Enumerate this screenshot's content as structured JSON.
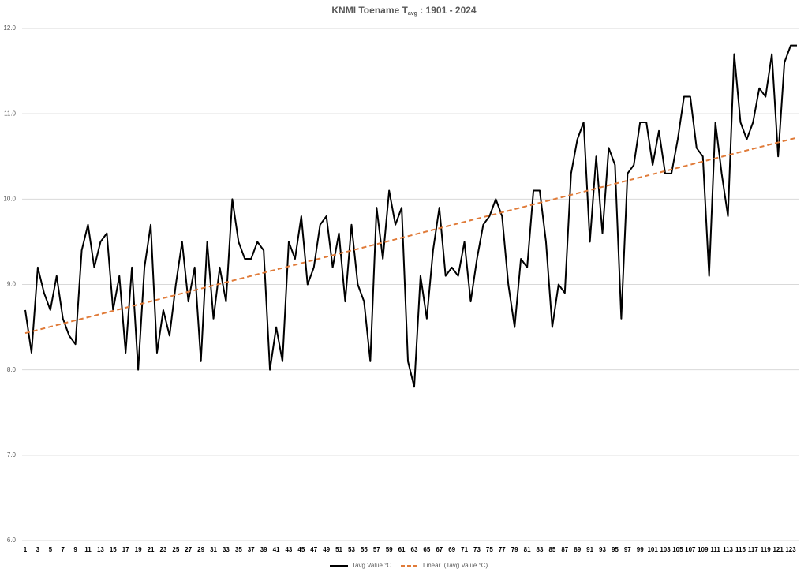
{
  "chart_data": {
    "type": "line",
    "title": "KNMI Toename T",
    "title_subscript": "avg",
    "title_suffix": " : 1901 - 2024",
    "categories": [
      1,
      null,
      3,
      null,
      5,
      null,
      7,
      null,
      9,
      null,
      11,
      null,
      13,
      null,
      15,
      null,
      17,
      null,
      19,
      null,
      21,
      null,
      23,
      null,
      25,
      null,
      27,
      null,
      29,
      null,
      31,
      null,
      33,
      null,
      35,
      null,
      37,
      null,
      39,
      null,
      41,
      null,
      43,
      null,
      45,
      null,
      47,
      null,
      49,
      null,
      51,
      null,
      53,
      null,
      55,
      null,
      57,
      null,
      59,
      null,
      61,
      null,
      63,
      null,
      65,
      null,
      67,
      null,
      69,
      null,
      71,
      null,
      73,
      null,
      75,
      null,
      77,
      null,
      79,
      null,
      81,
      null,
      83,
      null,
      85,
      null,
      87,
      null,
      89,
      null,
      91,
      null,
      93,
      null,
      95,
      null,
      97,
      null,
      99,
      null,
      101,
      null,
      103,
      null,
      105,
      null,
      107,
      null,
      109,
      null,
      111,
      null,
      113,
      null,
      115,
      null,
      117,
      null,
      119,
      null,
      121,
      null,
      123,
      null
    ],
    "series": [
      {
        "name": "Tavg Value °C",
        "color": "#000000",
        "values": [
          8.7,
          8.2,
          9.2,
          8.9,
          8.7,
          9.1,
          8.6,
          8.4,
          8.3,
          9.4,
          9.7,
          9.2,
          9.5,
          9.6,
          8.7,
          9.1,
          8.2,
          9.2,
          8.0,
          9.2,
          9.7,
          8.2,
          8.7,
          8.4,
          9.0,
          9.5,
          8.8,
          9.2,
          8.1,
          9.5,
          8.6,
          9.2,
          8.8,
          10.0,
          9.5,
          9.3,
          9.3,
          9.5,
          9.4,
          8.0,
          8.5,
          8.1,
          9.5,
          9.3,
          9.8,
          9.0,
          9.2,
          9.7,
          9.8,
          9.2,
          9.6,
          8.8,
          9.7,
          9.0,
          8.8,
          8.1,
          9.9,
          9.3,
          10.1,
          9.7,
          9.9,
          8.1,
          7.8,
          9.1,
          8.6,
          9.4,
          9.9,
          9.1,
          9.2,
          9.1,
          9.5,
          8.8,
          9.3,
          9.7,
          9.8,
          10.0,
          9.8,
          9.0,
          8.5,
          9.3,
          9.2,
          10.1,
          10.1,
          9.5,
          8.5,
          9.0,
          8.9,
          10.3,
          10.7,
          10.9,
          9.5,
          10.5,
          9.6,
          10.6,
          10.4,
          8.6,
          10.3,
          10.4,
          10.9,
          10.9,
          10.4,
          10.8,
          10.3,
          10.3,
          10.7,
          11.2,
          11.2,
          10.6,
          10.5,
          9.1,
          10.9,
          10.3,
          9.8,
          11.7,
          10.9,
          10.7,
          10.9,
          11.3,
          11.2,
          11.7,
          10.5,
          11.6,
          11.8,
          11.8
        ]
      }
    ],
    "trend": {
      "name": "Linear  (Tavg Value °C)",
      "color": "#e07b39",
      "values": [
        8.43,
        10.72
      ]
    },
    "ylim": [
      6,
      12
    ],
    "yticks": [
      {
        "value": 6,
        "label": "6.0"
      },
      {
        "value": 7,
        "label": "7.0"
      },
      {
        "value": 8,
        "label": "8.0"
      },
      {
        "value": 9,
        "label": "9.0"
      },
      {
        "value": 10,
        "label": "10.0"
      },
      {
        "value": 11,
        "label": "11.0"
      },
      {
        "value": 12,
        "label": "12.0"
      }
    ],
    "grid": true
  }
}
